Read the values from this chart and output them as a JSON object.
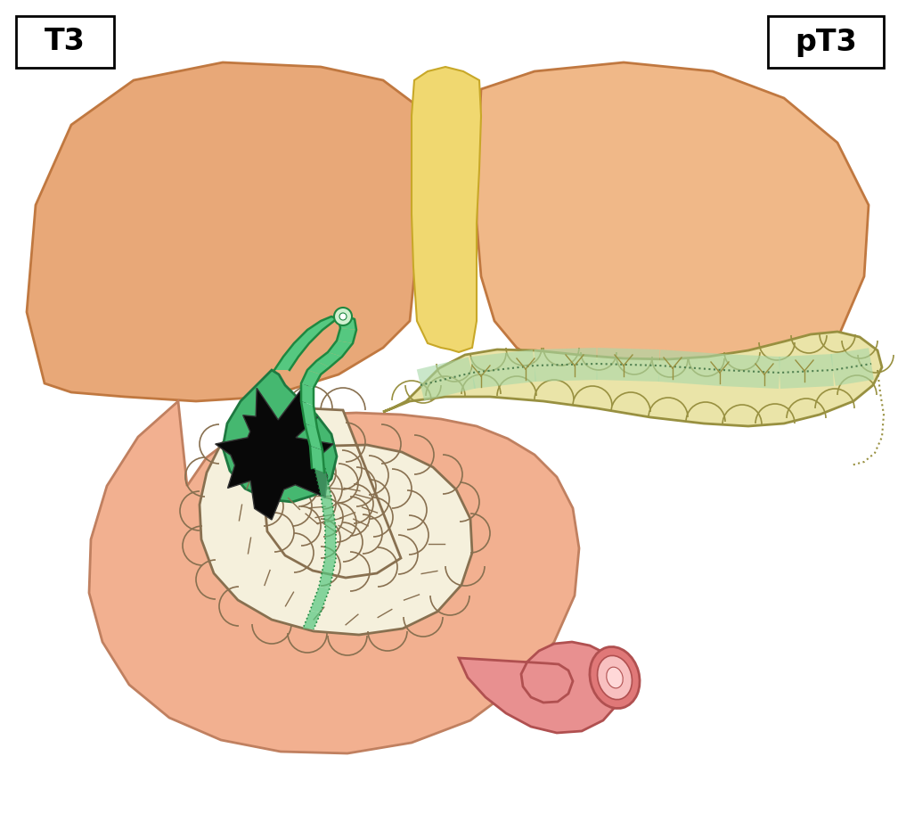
{
  "label_T3": "T3",
  "label_pT3": "pT3",
  "bg_color": "#ffffff",
  "liver_fill": "#E8A878",
  "liver_edge": "#C07840",
  "liver_fill2": "#F0B888",
  "ligament_fill": "#F0D870",
  "ligament_edge": "#C8A828",
  "gallbladder_fill": "#45B870",
  "gallbladder_edge": "#1E7840",
  "tumor_fill": "#080808",
  "bile_duct_fill": "#55C880",
  "bile_duct_edge": "#1E8840",
  "pancreas_fill": "#EAE4A8",
  "pancreas_fill2": "#D8D880",
  "pancreas_edge": "#989040",
  "duodenum_fill": "#F5F0DC",
  "duodenum_edge": "#887050",
  "colon_fill": "#E89090",
  "colon_fill2": "#D07070",
  "colon_edge": "#B05050",
  "duct_green": "#A8D8A8",
  "duct_green_edge": "#508050",
  "omentum_fill": "#F2B090",
  "omentum_edge": "#C08060"
}
